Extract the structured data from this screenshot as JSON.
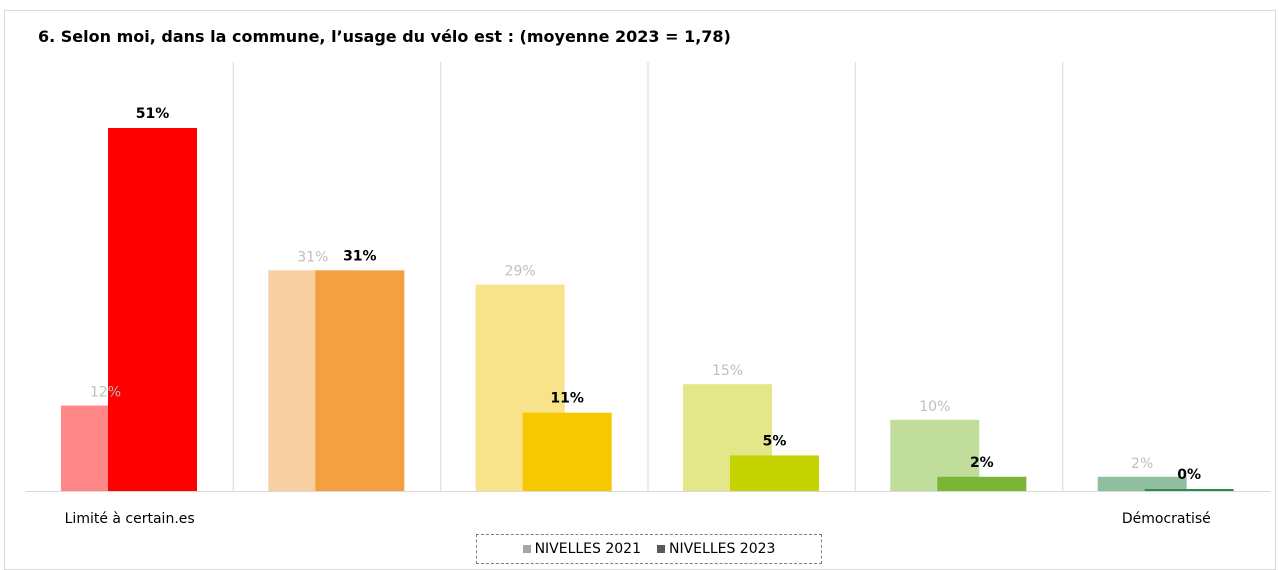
{
  "chart_data": {
    "type": "bar",
    "title": "6. Selon moi, dans la commune, l’usage du vélo est : (moyenne 2023 = 1,78)",
    "categories": [
      "Limité à certain.es",
      "",
      "",
      "",
      "",
      "Démocratisé"
    ],
    "series": [
      {
        "name": "NIVELLES 2021",
        "values": [
          12,
          31,
          29,
          15,
          10,
          2
        ],
        "labels": [
          "12%",
          "31%",
          "29%",
          "15%",
          "10%",
          "2%"
        ],
        "colors": [
          "#ff8787",
          "#f8cfa0",
          "#f8e38a",
          "#e4e68a",
          "#c0dd9c",
          "#8fbf9f"
        ],
        "legend_color": "#a6a6a6"
      },
      {
        "name": "NIVELLES 2023",
        "values": [
          51,
          31,
          11,
          5,
          2,
          0
        ],
        "labels": [
          "51%",
          "31%",
          "11%",
          "5%",
          "2%",
          "0%"
        ],
        "colors": [
          "#ff0000",
          "#f5a040",
          "#f5c800",
          "#c5d400",
          "#7ab535",
          "#2e8b4a"
        ],
        "legend_color": "#595959"
      }
    ],
    "ylim": [
      0,
      60
    ],
    "grid": "vertical separators",
    "legend": "bottom-center"
  }
}
